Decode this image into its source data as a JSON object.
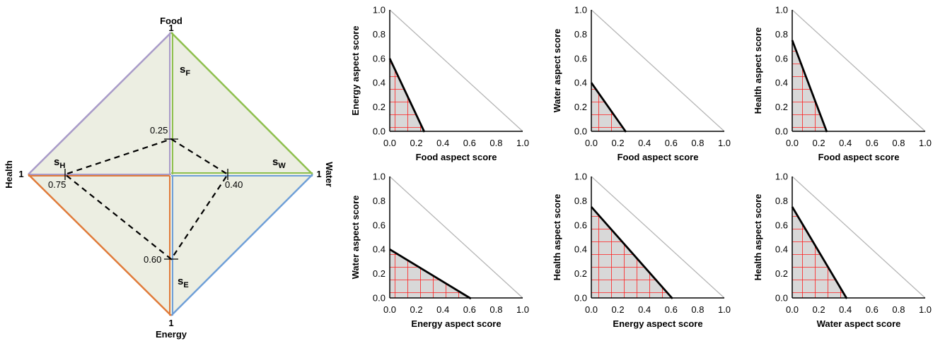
{
  "diagram": {
    "corners": {
      "food": "Food",
      "water": "Water",
      "energy": "Energy",
      "health": "Health"
    },
    "corner_value": "1",
    "sub_scores": [
      {
        "key": "food",
        "base": "s",
        "sub": "F",
        "value": 0.25,
        "value_label": "0.25"
      },
      {
        "key": "water",
        "base": "s",
        "sub": "W",
        "value": 0.4,
        "value_label": "0.40"
      },
      {
        "key": "energy",
        "base": "s",
        "sub": "E",
        "value": 0.6,
        "value_label": "0.60"
      },
      {
        "key": "health",
        "base": "s",
        "sub": "H",
        "value": 0.75,
        "value_label": "0.75"
      }
    ],
    "colors": {
      "food": "#8fc04f",
      "water": "#6f9fd8",
      "energy": "#e07b3a",
      "health": "#a99bc9",
      "fill": "#eceee2"
    }
  },
  "chart_data": [
    {
      "type": "area",
      "xlabel": "Food aspect score",
      "ylabel": "Energy aspect score",
      "xlim": [
        0,
        1
      ],
      "ylim": [
        0,
        1
      ],
      "ticks": [
        "0.0",
        "0.2",
        "0.4",
        "0.6",
        "0.8",
        "1.0"
      ],
      "x_intercept": 0.25,
      "y_intercept": 0.6
    },
    {
      "type": "area",
      "xlabel": "Food aspect score",
      "ylabel": "Water aspect score",
      "xlim": [
        0,
        1
      ],
      "ylim": [
        0,
        1
      ],
      "ticks": [
        "0.0",
        "0.2",
        "0.4",
        "0.6",
        "0.8",
        "1.0"
      ],
      "x_intercept": 0.25,
      "y_intercept": 0.4
    },
    {
      "type": "area",
      "xlabel": "Food aspect score",
      "ylabel": "Health aspect score",
      "xlim": [
        0,
        1
      ],
      "ylim": [
        0,
        1
      ],
      "ticks": [
        "0.0",
        "0.2",
        "0.4",
        "0.6",
        "0.8",
        "1.0"
      ],
      "x_intercept": 0.25,
      "y_intercept": 0.75
    },
    {
      "type": "area",
      "xlabel": "Energy aspect score",
      "ylabel": "Water aspect score",
      "xlim": [
        0,
        1
      ],
      "ylim": [
        0,
        1
      ],
      "ticks": [
        "0.0",
        "0.2",
        "0.4",
        "0.6",
        "0.8",
        "1.0"
      ],
      "x_intercept": 0.6,
      "y_intercept": 0.4
    },
    {
      "type": "area",
      "xlabel": "Energy aspect score",
      "ylabel": "Health aspect score",
      "xlim": [
        0,
        1
      ],
      "ylim": [
        0,
        1
      ],
      "ticks": [
        "0.0",
        "0.2",
        "0.4",
        "0.6",
        "0.8",
        "1.0"
      ],
      "x_intercept": 0.6,
      "y_intercept": 0.75
    },
    {
      "type": "area",
      "xlabel": "Water aspect score",
      "ylabel": "Health aspect score",
      "xlim": [
        0,
        1
      ],
      "ylim": [
        0,
        1
      ],
      "ticks": [
        "0.0",
        "0.2",
        "0.4",
        "0.6",
        "0.8",
        "1.0"
      ],
      "x_intercept": 0.4,
      "y_intercept": 0.75
    }
  ]
}
